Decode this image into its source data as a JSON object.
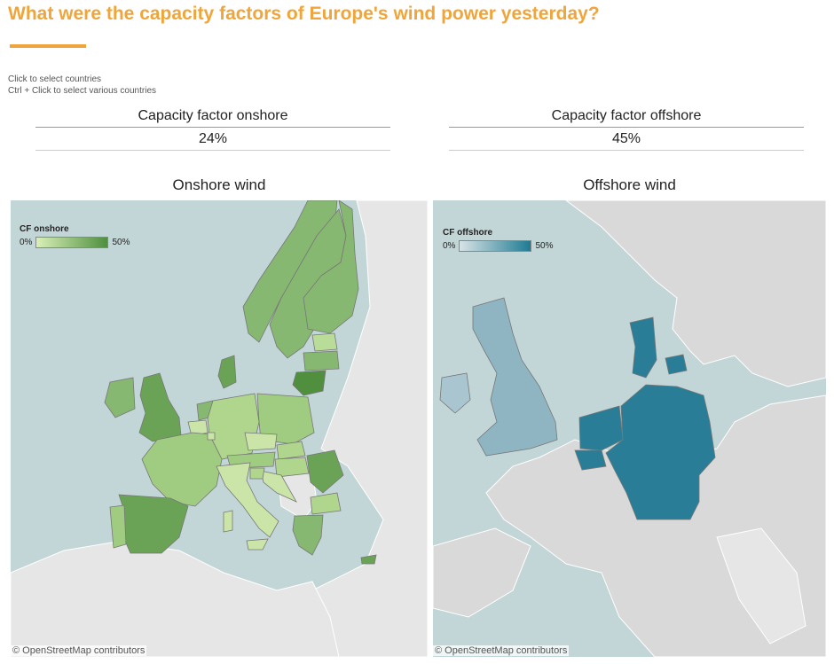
{
  "header": {
    "title": "What were the capacity factors of Europe's wind power yesterday?",
    "instructions": [
      "Click to select countries",
      "Ctrl + Click to select various countries"
    ]
  },
  "kpis": {
    "onshore": {
      "label": "Capacity factor onshore",
      "value": "24%"
    },
    "offshore": {
      "label": "Capacity factor offshore",
      "value": "45%"
    }
  },
  "maps": {
    "onshore": {
      "title": "Onshore wind",
      "legend_title": "CF onshore",
      "legend_min": "0%",
      "legend_max": "50%",
      "ramp_colors": [
        "#d9f0b8",
        "#4f8f3e"
      ],
      "attribution": "© OpenStreetMap contributors"
    },
    "offshore": {
      "title": "Offshore wind",
      "legend_title": "CF offshore",
      "legend_min": "0%",
      "legend_max": "50%",
      "ramp_colors": [
        "#d8e3e6",
        "#1f7b93"
      ],
      "attribution": "© OpenStreetMap contributors"
    }
  },
  "colors": {
    "accent": "#f0a53a",
    "sea": "#c3d6d7",
    "land": "#e6e6e6",
    "offshore_land": "#d9d9d9",
    "onshore_fill_high": "#4f8f3e",
    "onshore_fill_mid": "#86b871",
    "onshore_fill_low": "#cbe5a8",
    "offshore_fill_high": "#2a7d96",
    "offshore_fill_mid": "#8fb5c3"
  }
}
